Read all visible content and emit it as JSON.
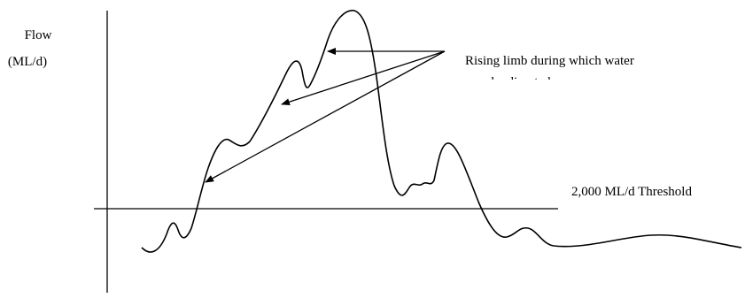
{
  "y_axis_label": {
    "line1": "Flow",
    "line2": "(ML/d)"
  },
  "threshold_label": "2,000 ML/d Threshold",
  "annotation": {
    "line1": "Rising limb during which water",
    "line2": "may be diverted"
  },
  "colors": {
    "line": "#000000",
    "background": "#ffffff"
  }
}
